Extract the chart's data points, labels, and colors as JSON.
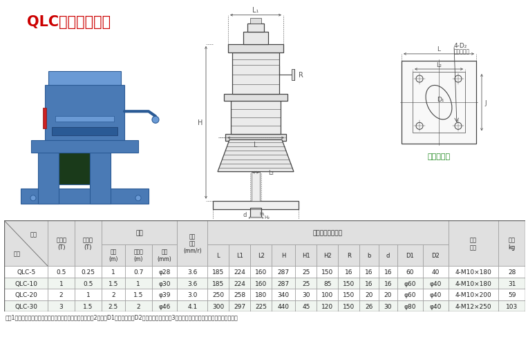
{
  "title": "QLC型侧摇启闭机",
  "title_color": "#cc0000",
  "bg_color": "#ffffff",
  "foundation_label": "基础布置图",
  "foundation_label_color": "#228B22",
  "note": "注：1、启闭速度指的是手柄转一圈闸门提升或下降的距离。2、参数D1是过螺杆孔，D2是二次浇注预留孔。3、用户确定订货型号后，请索取确切数据。",
  "header_bg": "#e0e0e0",
  "row_bg_even": "#ffffff",
  "row_bg_odd": "#f0f5f0",
  "col_widths": [
    6.5,
    4,
    4,
    3.5,
    4,
    3.8,
    4.5,
    3.2,
    3.2,
    3.2,
    3.5,
    3.2,
    3.2,
    3.2,
    2.8,
    2.8,
    3.8,
    3.8,
    7.5,
    4
  ],
  "header_row1": [
    "",
    "启门力",
    "闭门力",
    "螺杆",
    "",
    "",
    "启闭\n速度\n(mm/r)",
    "其他主要技术参数",
    "",
    "",
    "",
    "",
    "",
    "",
    "",
    "",
    "",
    "",
    "地脚\n螺栓",
    "重量\nkg"
  ],
  "header_row2": [
    "",
    "(T)",
    "(T)",
    "全长\n(m)",
    "螺纹长\n(m)",
    "直径\n(mm)",
    "",
    "L",
    "L1",
    "L2",
    "H",
    "H1",
    "H2",
    "R",
    "b",
    "d",
    "D1",
    "D2",
    "",
    ""
  ],
  "header_diag": [
    "参数",
    "型号"
  ],
  "header_top_labels": [
    "螺杆",
    "其他主要技术参数"
  ],
  "data_rows": [
    [
      "QLC-5",
      "0.5",
      "0.25",
      "1",
      "0.7",
      "φ28",
      "3.6",
      "185",
      "224",
      "160",
      "287",
      "25",
      "150",
      "16",
      "16",
      "16",
      "60",
      "40",
      "4-M10×180",
      "28"
    ],
    [
      "QLC-10",
      "1",
      "0.5",
      "1.5",
      "1",
      "φ30",
      "3.6",
      "185",
      "224",
      "160",
      "287",
      "25",
      "85",
      "150",
      "16",
      "16",
      "φ60",
      "φ40",
      "4-M10×180",
      "31"
    ],
    [
      "QLC-20",
      "2",
      "1",
      "2",
      "1.5",
      "φ39",
      "3.0",
      "250",
      "258",
      "180",
      "340",
      "30",
      "100",
      "150",
      "20",
      "20",
      "φ60",
      "φ40",
      "4-M10×200",
      "59"
    ],
    [
      "QLC-30",
      "3",
      "1.5",
      "2.5",
      "2",
      "φ46",
      "4.1",
      "300",
      "297",
      "225",
      "440",
      "45",
      "120",
      "150",
      "26",
      "30",
      "φ80",
      "φ40",
      "4-M12×250",
      "103"
    ]
  ]
}
